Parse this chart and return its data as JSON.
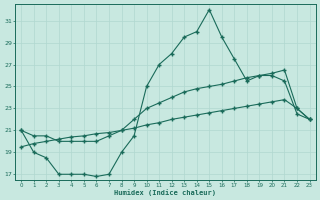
{
  "xlabel": "Humidex (Indice chaleur)",
  "x": [
    0,
    1,
    2,
    3,
    4,
    5,
    6,
    7,
    8,
    9,
    10,
    11,
    12,
    13,
    14,
    15,
    16,
    17,
    18,
    19,
    20,
    21,
    22,
    23
  ],
  "line_main": [
    21,
    19,
    18.5,
    17,
    17,
    17,
    16.8,
    17,
    19,
    20.5,
    25,
    27,
    28,
    29.5,
    30,
    32,
    29.5,
    27.5,
    25.5,
    26,
    26,
    25.5,
    22.5,
    22
  ],
  "line_upper": [
    21,
    20.5,
    20.5,
    20,
    20,
    20,
    20,
    20.5,
    21,
    22,
    23,
    23.5,
    24,
    24.5,
    24.8,
    25,
    25.2,
    25.5,
    25.8,
    26,
    26.2,
    26.5,
    23,
    22
  ],
  "line_lower": [
    19.5,
    19.8,
    20,
    20.2,
    20.4,
    20.5,
    20.7,
    20.8,
    21,
    21.2,
    21.5,
    21.7,
    22,
    22.2,
    22.4,
    22.6,
    22.8,
    23,
    23.2,
    23.4,
    23.6,
    23.8,
    23,
    22
  ],
  "line_color": "#1a6b5a",
  "bg_color": "#c8e8e0",
  "grid_color": "#b0d8d0",
  "ylim_min": 16.5,
  "ylim_max": 32.5,
  "yticks": [
    17,
    19,
    21,
    23,
    25,
    27,
    29,
    31
  ],
  "xlim_min": -0.5,
  "xlim_max": 23.5,
  "xticks": [
    0,
    1,
    2,
    3,
    4,
    5,
    6,
    7,
    8,
    9,
    10,
    11,
    12,
    13,
    14,
    15,
    16,
    17,
    18,
    19,
    20,
    21,
    22,
    23
  ]
}
